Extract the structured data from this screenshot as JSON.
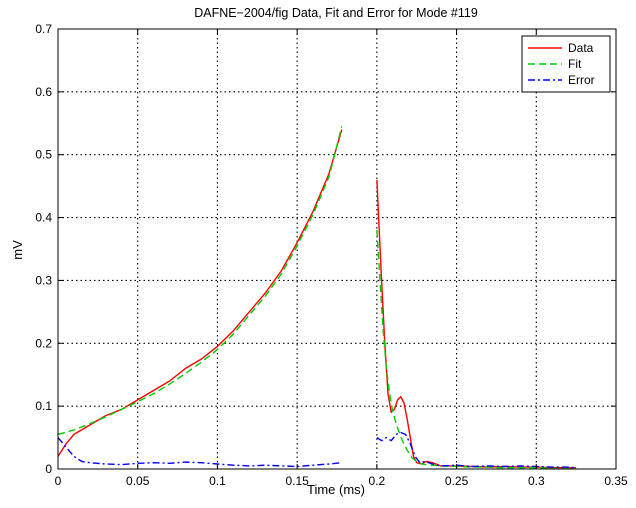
{
  "chart_data": {
    "type": "line",
    "title": "DAFNE−2004/fig   Data, Fit and Error for Mode #119",
    "xlabel": "Time  (ms)",
    "ylabel": "mV",
    "xlim": [
      0,
      0.35
    ],
    "ylim": [
      0,
      0.7
    ],
    "xticks": [
      "0",
      "0.05",
      "0.1",
      "0.15",
      "0.2",
      "0.25",
      "0.3",
      "0.35"
    ],
    "yticks": [
      "0",
      "0.1",
      "0.2",
      "0.3",
      "0.4",
      "0.5",
      "0.6",
      "0.7"
    ],
    "grid": true,
    "legend_position": "top-right",
    "series": [
      {
        "name": "Data",
        "color": "#ff0000",
        "style": "solid",
        "segments": [
          [
            [
              0,
              0.02
            ],
            [
              0.005,
              0.04
            ],
            [
              0.01,
              0.055
            ],
            [
              0.02,
              0.07
            ],
            [
              0.03,
              0.085
            ],
            [
              0.04,
              0.095
            ],
            [
              0.05,
              0.11
            ],
            [
              0.06,
              0.125
            ],
            [
              0.07,
              0.14
            ],
            [
              0.08,
              0.16
            ],
            [
              0.09,
              0.175
            ],
            [
              0.1,
              0.195
            ],
            [
              0.11,
              0.22
            ],
            [
              0.12,
              0.25
            ],
            [
              0.13,
              0.28
            ],
            [
              0.14,
              0.315
            ],
            [
              0.15,
              0.36
            ],
            [
              0.16,
              0.41
            ],
            [
              0.17,
              0.47
            ],
            [
              0.178,
              0.54
            ]
          ],
          [
            [
              0.2,
              0.46
            ],
            [
              0.2015,
              0.38
            ],
            [
              0.203,
              0.3
            ],
            [
              0.205,
              0.2
            ],
            [
              0.207,
              0.12
            ],
            [
              0.209,
              0.09
            ],
            [
              0.211,
              0.095
            ],
            [
              0.213,
              0.11
            ],
            [
              0.215,
              0.115
            ],
            [
              0.217,
              0.105
            ],
            [
              0.219,
              0.08
            ],
            [
              0.221,
              0.05
            ],
            [
              0.223,
              0.02
            ],
            [
              0.225,
              0.01
            ],
            [
              0.228,
              0.008
            ],
            [
              0.231,
              0.012
            ],
            [
              0.235,
              0.01
            ],
            [
              0.24,
              0.005
            ],
            [
              0.25,
              0.005
            ],
            [
              0.26,
              0.004
            ],
            [
              0.27,
              0.003
            ],
            [
              0.28,
              0.004
            ],
            [
              0.29,
              0.003
            ],
            [
              0.3,
              0.003
            ],
            [
              0.31,
              0.002
            ],
            [
              0.32,
              0.002
            ],
            [
              0.325,
              0.002
            ]
          ]
        ]
      },
      {
        "name": "Fit",
        "color": "#00cc00",
        "style": "dashed",
        "segments": [
          [
            [
              0,
              0.055
            ],
            [
              0.01,
              0.062
            ],
            [
              0.02,
              0.072
            ],
            [
              0.03,
              0.083
            ],
            [
              0.04,
              0.095
            ],
            [
              0.05,
              0.107
            ],
            [
              0.06,
              0.12
            ],
            [
              0.07,
              0.135
            ],
            [
              0.08,
              0.152
            ],
            [
              0.09,
              0.17
            ],
            [
              0.1,
              0.19
            ],
            [
              0.11,
              0.215
            ],
            [
              0.12,
              0.245
            ],
            [
              0.13,
              0.275
            ],
            [
              0.14,
              0.31
            ],
            [
              0.15,
              0.355
            ],
            [
              0.16,
              0.405
            ],
            [
              0.17,
              0.465
            ],
            [
              0.178,
              0.545
            ]
          ],
          [
            [
              0.2,
              0.38
            ],
            [
              0.202,
              0.3
            ],
            [
              0.204,
              0.22
            ],
            [
              0.206,
              0.16
            ],
            [
              0.208,
              0.12
            ],
            [
              0.21,
              0.09
            ],
            [
              0.213,
              0.065
            ],
            [
              0.216,
              0.045
            ],
            [
              0.219,
              0.03
            ],
            [
              0.222,
              0.018
            ],
            [
              0.226,
              0.01
            ],
            [
              0.23,
              0.007
            ],
            [
              0.235,
              0.006
            ],
            [
              0.24,
              0.005
            ],
            [
              0.25,
              0.004
            ],
            [
              0.26,
              0.003
            ],
            [
              0.27,
              0.003
            ],
            [
              0.28,
              0.002
            ],
            [
              0.29,
              0.002
            ],
            [
              0.3,
              0.002
            ],
            [
              0.31,
              0.001
            ],
            [
              0.32,
              0.001
            ],
            [
              0.325,
              0.001
            ]
          ]
        ]
      },
      {
        "name": "Error",
        "color": "#0000ff",
        "style": "dashdot",
        "segments": [
          [
            [
              0,
              0.05
            ],
            [
              0.005,
              0.035
            ],
            [
              0.01,
              0.02
            ],
            [
              0.015,
              0.012
            ],
            [
              0.02,
              0.01
            ],
            [
              0.03,
              0.008
            ],
            [
              0.04,
              0.007
            ],
            [
              0.05,
              0.009
            ],
            [
              0.06,
              0.01
            ],
            [
              0.07,
              0.009
            ],
            [
              0.08,
              0.011
            ],
            [
              0.09,
              0.01
            ],
            [
              0.1,
              0.008
            ],
            [
              0.11,
              0.006
            ],
            [
              0.12,
              0.005
            ],
            [
              0.13,
              0.006
            ],
            [
              0.14,
              0.005
            ],
            [
              0.15,
              0.004
            ],
            [
              0.16,
              0.006
            ],
            [
              0.17,
              0.008
            ],
            [
              0.178,
              0.01
            ]
          ],
          [
            [
              0.2,
              0.05
            ],
            [
              0.203,
              0.045
            ],
            [
              0.206,
              0.05
            ],
            [
              0.209,
              0.045
            ],
            [
              0.212,
              0.055
            ],
            [
              0.215,
              0.058
            ],
            [
              0.218,
              0.055
            ],
            [
              0.221,
              0.04
            ],
            [
              0.224,
              0.02
            ],
            [
              0.227,
              0.01
            ],
            [
              0.23,
              0.012
            ],
            [
              0.235,
              0.008
            ],
            [
              0.24,
              0.005
            ],
            [
              0.25,
              0.006
            ],
            [
              0.26,
              0.004
            ],
            [
              0.27,
              0.005
            ],
            [
              0.28,
              0.004
            ],
            [
              0.29,
              0.005
            ],
            [
              0.3,
              0.004
            ],
            [
              0.31,
              0.003
            ],
            [
              0.32,
              0.003
            ],
            [
              0.325,
              0.002
            ]
          ]
        ]
      }
    ]
  }
}
